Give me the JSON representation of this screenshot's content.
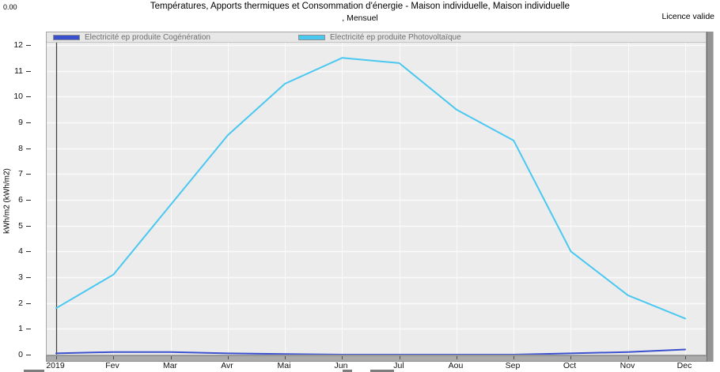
{
  "header": {
    "cursor_value": "0.00",
    "title": "Températures, Apports thermiques et Consommation d'énergie - Maison individuelle, Maison individuelle",
    "subtitle": ", Mensuel",
    "licence": "Licence valide"
  },
  "chart_data": {
    "type": "line",
    "title": "Températures, Apports thermiques et Consommation d'énergie - Maison individuelle, Maison individuelle",
    "subtitle": ", Mensuel",
    "xlabel": "",
    "ylabel": "kWh/m2 (kWh/m2)",
    "ylim": [
      0,
      12
    ],
    "ytick_step": 1,
    "grid": true,
    "legend_position": "top-left",
    "categories": [
      "2019",
      "Fev",
      "Mar",
      "Avr",
      "Mai",
      "Jun",
      "Jul",
      "Aou",
      "Sep",
      "Oct",
      "Nov",
      "Dec"
    ],
    "series": [
      {
        "name": "Electricité ep produite Cogénération",
        "color": "#3A50CC",
        "values": [
          0.05,
          0.1,
          0.1,
          0.05,
          0.02,
          0,
          0,
          0,
          0,
          0.05,
          0.1,
          0.2
        ]
      },
      {
        "name": "Electricité ep produite Photovoltaïque",
        "color": "#4AC8F0",
        "values": [
          1.8,
          3.1,
          5.8,
          8.5,
          10.5,
          11.5,
          11.3,
          9.5,
          8.3,
          4.0,
          2.3,
          1.4
        ]
      }
    ],
    "cursor": {
      "month_index": 0,
      "value_label": "0.00"
    }
  },
  "style_colors": {
    "plot_background": "#ECECEC",
    "gridline": "#FAFAFA",
    "cursor_line": "#3F3F3F"
  }
}
